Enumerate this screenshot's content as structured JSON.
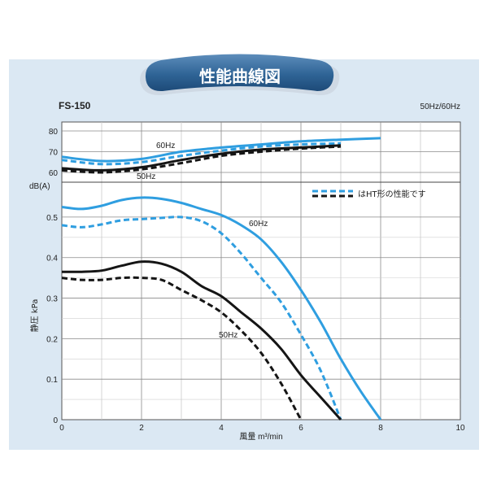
{
  "header": {
    "title": "性能曲線図"
  },
  "chart_data": {
    "type": "line",
    "model": "FS-150",
    "frequency_label": "50Hz/60Hz",
    "xlabel": "風量 m³/min",
    "ylabel": "静圧 kPa",
    "noise_label": "dB(A)",
    "xlim": [
      0,
      10
    ],
    "ylim": [
      0,
      0.55
    ],
    "noise_lim": [
      60,
      80
    ],
    "x_ticks": [
      "0",
      "2",
      "4",
      "6",
      "8",
      "10"
    ],
    "y_ticks": [
      "0",
      "0.1",
      "0.2",
      "0.3",
      "0.4",
      "0.5"
    ],
    "noise_ticks": [
      "60",
      "70",
      "80"
    ],
    "grid": true,
    "legend": "はHT形の性能です",
    "colors": {
      "hz60": "#2f9ee0",
      "hz50": "#151515",
      "panel": "#dbe8f3",
      "pill": "#3a6e9c"
    },
    "curve_labels": {
      "p60": "60Hz",
      "p50": "50Hz",
      "n60": "60Hz",
      "n50": "50Hz"
    },
    "pressure_series": [
      {
        "freq": "60Hz",
        "style": "solid",
        "x": [
          0,
          0.5,
          1,
          1.5,
          2,
          2.5,
          3,
          3.5,
          4,
          4.5,
          5,
          5.5,
          6,
          6.5,
          7,
          7.5,
          8
        ],
        "y": [
          0.525,
          0.52,
          0.528,
          0.542,
          0.548,
          0.545,
          0.535,
          0.52,
          0.505,
          0.48,
          0.445,
          0.39,
          0.32,
          0.24,
          0.15,
          0.07,
          0
        ]
      },
      {
        "freq": "60Hz",
        "style": "dashed",
        "x": [
          0,
          0.5,
          1,
          1.5,
          2,
          2.5,
          3,
          3.5,
          4,
          4.5,
          5,
          5.5,
          6,
          6.5,
          7
        ],
        "y": [
          0.48,
          0.475,
          0.482,
          0.492,
          0.495,
          0.498,
          0.5,
          0.49,
          0.46,
          0.41,
          0.35,
          0.29,
          0.21,
          0.12,
          0
        ]
      },
      {
        "freq": "50Hz",
        "style": "solid",
        "x": [
          0,
          0.5,
          1,
          1.5,
          2,
          2.5,
          3,
          3.5,
          4,
          4.5,
          5,
          5.5,
          6,
          6.5,
          7
        ],
        "y": [
          0.365,
          0.365,
          0.368,
          0.38,
          0.39,
          0.385,
          0.365,
          0.33,
          0.305,
          0.265,
          0.225,
          0.175,
          0.11,
          0.055,
          0
        ]
      },
      {
        "freq": "50Hz",
        "style": "dashed",
        "x": [
          0,
          0.5,
          1,
          1.5,
          2,
          2.5,
          3,
          3.5,
          4,
          4.5,
          5,
          5.5,
          6
        ],
        "y": [
          0.35,
          0.345,
          0.345,
          0.35,
          0.35,
          0.345,
          0.32,
          0.295,
          0.265,
          0.22,
          0.165,
          0.09,
          0
        ]
      }
    ],
    "noise_series": [
      {
        "freq": "60Hz",
        "style": "solid",
        "x": [
          0,
          1,
          2,
          3,
          4,
          5,
          6,
          7,
          8
        ],
        "y": [
          67.5,
          65.5,
          66.5,
          70,
          72,
          73.5,
          75,
          75.8,
          76.5
        ]
      },
      {
        "freq": "60Hz",
        "style": "dashed",
        "x": [
          0,
          1,
          2,
          3,
          4,
          5,
          6,
          7
        ],
        "y": [
          66,
          64,
          65,
          68,
          70.5,
          72.5,
          73.5,
          74
        ]
      },
      {
        "freq": "50Hz",
        "style": "solid",
        "x": [
          0,
          1,
          2,
          3,
          4,
          5,
          6,
          7
        ],
        "y": [
          62,
          61,
          62.5,
          66,
          69,
          71,
          72,
          73
        ]
      },
      {
        "freq": "50Hz",
        "style": "dashed",
        "x": [
          0,
          1,
          2,
          3,
          4,
          5,
          6,
          7
        ],
        "y": [
          61,
          60,
          61.5,
          64.5,
          68,
          70,
          71.5,
          72.5
        ]
      }
    ]
  }
}
